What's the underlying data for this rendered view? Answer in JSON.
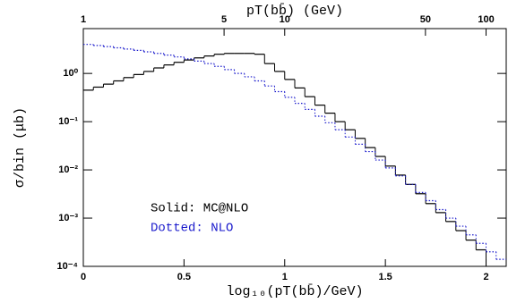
{
  "chart_data": {
    "type": "histogram",
    "x_label": "log₁₀(pT(bb̄)/GeV)",
    "x2_label": "pT(bb̄) (GeV)",
    "y_label": "σ/bin (μb)",
    "bins": [
      0,
      0.05,
      0.1,
      0.15,
      0.2,
      0.25,
      0.3,
      0.35,
      0.4,
      0.45,
      0.5,
      0.55,
      0.6,
      0.65,
      0.7,
      0.75,
      0.8,
      0.85,
      0.9,
      0.95,
      1,
      1.05,
      1.1,
      1.15,
      1.2,
      1.25,
      1.3,
      1.35,
      1.4,
      1.45,
      1.5,
      1.55,
      1.6,
      1.65,
      1.7,
      1.75,
      1.8,
      1.85,
      1.9,
      1.95,
      2,
      2.05,
      2.1
    ],
    "series": [
      {
        "name": "Solid: MC@NLO",
        "color": "#000000",
        "dash": "solid",
        "values": [
          0.45,
          0.52,
          0.6,
          0.7,
          0.82,
          0.95,
          1.1,
          1.3,
          1.5,
          1.7,
          1.9,
          2.1,
          2.3,
          2.5,
          2.6,
          2.6,
          2.6,
          2.5,
          1.6,
          1.1,
          0.75,
          0.5,
          0.33,
          0.22,
          0.15,
          0.1,
          0.068,
          0.045,
          0.029,
          0.019,
          0.012,
          0.0078,
          0.005,
          0.0032,
          0.002,
          0.0013,
          0.00085,
          0.00055,
          0.00035,
          0.00022,
          null,
          null
        ]
      },
      {
        "name": "Dotted: NLO",
        "color": "#1a1acc",
        "dash": "dotted",
        "values": [
          4.0,
          3.8,
          3.6,
          3.4,
          3.2,
          3.0,
          2.8,
          2.6,
          2.4,
          2.2,
          2.0,
          1.8,
          1.6,
          1.4,
          1.2,
          1.0,
          0.85,
          0.7,
          0.55,
          0.42,
          0.32,
          0.24,
          0.18,
          0.13,
          0.095,
          0.068,
          0.048,
          0.034,
          0.024,
          0.016,
          0.011,
          0.0075,
          0.005,
          0.0034,
          0.0023,
          0.0015,
          0.001,
          0.00068,
          0.00045,
          0.0003,
          0.0002,
          0.00014
        ]
      }
    ],
    "xlim": [
      0,
      2.1
    ],
    "xticks": [
      0,
      0.5,
      1,
      1.5,
      2
    ],
    "x2lim": [
      1,
      125.9
    ],
    "x2scale": "log",
    "x2ticks": [
      1,
      5,
      10,
      50,
      100
    ],
    "ylim": [
      0.0001,
      8.5
    ],
    "yscale": "log",
    "yticks": [
      {
        "value": 0.0001,
        "label": "10⁻⁴"
      },
      {
        "value": 0.001,
        "label": "10⁻³"
      },
      {
        "value": 0.01,
        "label": "10⁻²"
      },
      {
        "value": 0.1,
        "label": "10⁻¹"
      },
      {
        "value": 1,
        "label": "10⁰"
      }
    ],
    "grid": false
  }
}
